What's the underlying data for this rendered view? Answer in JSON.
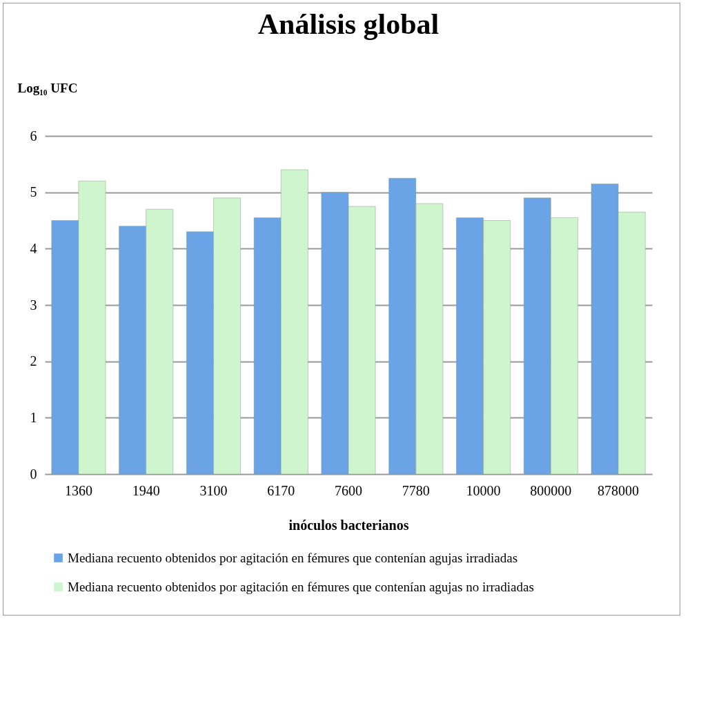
{
  "chart_data": {
    "type": "bar",
    "title": "Análisis global",
    "xlabel": "inóculos bacterianos",
    "ylabel": "Log₁₀ UFC",
    "categories": [
      "1360",
      "1940",
      "3100",
      "6170",
      "7600",
      "7780",
      "10000",
      "800000",
      "878000"
    ],
    "series": [
      {
        "name": "Mediana recuento obtenidos por agitación en fémures que contenían agujas irradiadas",
        "color": "#6aa3e6",
        "values": [
          4.5,
          4.4,
          4.3,
          4.55,
          5.0,
          5.25,
          4.55,
          4.9,
          5.15
        ]
      },
      {
        "name": "Mediana recuento obtenidos por agitación en fémures que contenían agujas no irradiadas",
        "color": "#cff5cf",
        "values": [
          5.2,
          4.7,
          4.9,
          5.4,
          4.75,
          4.8,
          4.5,
          4.55,
          4.65
        ]
      }
    ],
    "ylim": [
      0,
      6
    ],
    "yticks": [
      0,
      1,
      2,
      3,
      4,
      5,
      6
    ],
    "grid": "y",
    "legend": "bottom"
  }
}
